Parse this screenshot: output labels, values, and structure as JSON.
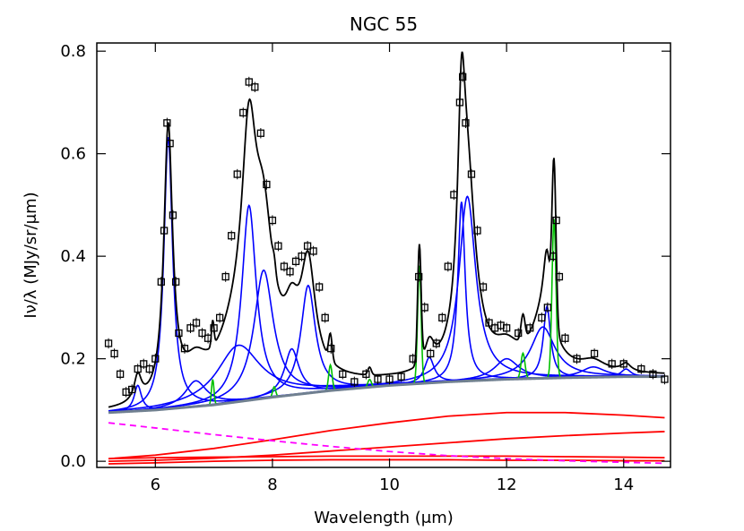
{
  "chart_data": {
    "type": "spectral-decomposition",
    "title": "NGC 55",
    "x_label": "Wavelength (μm)",
    "y_label": "Iν/λ (MJy/sr/μm)",
    "xlim": [
      5.0,
      14.8
    ],
    "ylim": [
      -0.012,
      0.816
    ],
    "xticks": [
      6,
      8,
      10,
      12,
      14
    ],
    "yticks": [
      {
        "value": 0,
        "label": "0.0"
      },
      0.2,
      0.4,
      0.6,
      0.8
    ],
    "observed": {
      "color": "#000000",
      "error": 0.01,
      "x": [
        5.2,
        5.3,
        5.4,
        5.5,
        5.6,
        5.7,
        5.8,
        5.9,
        6.0,
        6.1,
        6.15,
        6.2,
        6.25,
        6.3,
        6.35,
        6.4,
        6.5,
        6.6,
        6.7,
        6.8,
        6.9,
        7.0,
        7.1,
        7.2,
        7.3,
        7.4,
        7.5,
        7.6,
        7.7,
        7.8,
        7.9,
        8.0,
        8.1,
        8.2,
        8.3,
        8.4,
        8.5,
        8.6,
        8.7,
        8.8,
        8.9,
        9.0,
        9.2,
        9.4,
        9.6,
        9.8,
        10.0,
        10.2,
        10.4,
        10.5,
        10.6,
        10.7,
        10.8,
        10.9,
        11.0,
        11.1,
        11.2,
        11.25,
        11.3,
        11.4,
        11.5,
        11.6,
        11.7,
        11.8,
        11.9,
        12.0,
        12.2,
        12.4,
        12.6,
        12.7,
        12.8,
        12.85,
        12.9,
        13.0,
        13.2,
        13.5,
        13.8,
        14.0,
        14.3,
        14.5,
        14.7
      ],
      "values": [
        0.23,
        0.21,
        0.17,
        0.135,
        0.14,
        0.18,
        0.19,
        0.18,
        0.2,
        0.35,
        0.45,
        0.66,
        0.62,
        0.48,
        0.35,
        0.25,
        0.22,
        0.26,
        0.27,
        0.25,
        0.24,
        0.26,
        0.28,
        0.36,
        0.44,
        0.56,
        0.68,
        0.74,
        0.73,
        0.64,
        0.54,
        0.47,
        0.42,
        0.38,
        0.37,
        0.39,
        0.4,
        0.42,
        0.41,
        0.34,
        0.28,
        0.22,
        0.17,
        0.155,
        0.17,
        0.16,
        0.16,
        0.165,
        0.2,
        0.36,
        0.3,
        0.21,
        0.23,
        0.28,
        0.38,
        0.52,
        0.7,
        0.75,
        0.66,
        0.56,
        0.45,
        0.34,
        0.27,
        0.26,
        0.265,
        0.26,
        0.25,
        0.26,
        0.28,
        0.3,
        0.4,
        0.47,
        0.36,
        0.24,
        0.2,
        0.21,
        0.19,
        0.19,
        0.18,
        0.17,
        0.16
      ]
    },
    "continuum_x": [
      5.2,
      6,
      7,
      8,
      9,
      10,
      11,
      12,
      13,
      14,
      14.7
    ],
    "continuum": {
      "color": "#708090",
      "values": [
        0.095,
        0.1,
        0.11,
        0.125,
        0.138,
        0.148,
        0.155,
        0.16,
        0.163,
        0.165,
        0.165
      ]
    },
    "continuum_components": [
      {
        "color": "#ff0000",
        "values": [
          0.005,
          0.012,
          0.025,
          0.042,
          0.06,
          0.075,
          0.088,
          0.095,
          0.095,
          0.09,
          0.085
        ]
      },
      {
        "color": "#ff0000",
        "values": [
          0,
          0.002,
          0.006,
          0.012,
          0.02,
          0.028,
          0.036,
          0.044,
          0.05,
          0.055,
          0.058
        ]
      },
      {
        "color": "#ff0000",
        "values": [
          0.005,
          0.007,
          0.008,
          0.009,
          0.01,
          0.01,
          0.01,
          0.01,
          0.009,
          0.008,
          0.007
        ]
      },
      {
        "color": "#ff0000",
        "values": [
          -0.005,
          -0.003,
          0,
          0.002,
          0.003,
          0.003,
          0.003,
          0.002,
          0.002,
          0.001,
          0.001
        ]
      }
    ],
    "extinction": {
      "color": "#ff00ff",
      "values": [
        0.075,
        0.065,
        0.052,
        0.04,
        0.029,
        0.019,
        0.011,
        0.005,
        0.001,
        -0.002,
        -0.004
      ]
    },
    "model_color": "#000000",
    "feature_color": "#0000ff",
    "features": [
      {
        "center": 5.7,
        "fwhm": 0.15,
        "peak": 0.05
      },
      {
        "center": 6.22,
        "fwhm": 0.18,
        "peak": 0.53
      },
      {
        "center": 6.69,
        "fwhm": 0.45,
        "peak": 0.05
      },
      {
        "center": 7.42,
        "fwhm": 0.9,
        "peak": 0.11
      },
      {
        "center": 7.6,
        "fwhm": 0.3,
        "peak": 0.38
      },
      {
        "center": 7.85,
        "fwhm": 0.4,
        "peak": 0.25
      },
      {
        "center": 8.33,
        "fwhm": 0.3,
        "peak": 0.09
      },
      {
        "center": 8.61,
        "fwhm": 0.3,
        "peak": 0.21
      },
      {
        "center": 10.68,
        "fwhm": 0.2,
        "peak": 0.05
      },
      {
        "center": 11.23,
        "fwhm": 0.15,
        "peak": 0.35
      },
      {
        "center": 11.33,
        "fwhm": 0.35,
        "peak": 0.36
      },
      {
        "center": 12.0,
        "fwhm": 0.5,
        "peak": 0.04
      },
      {
        "center": 12.62,
        "fwhm": 0.5,
        "peak": 0.1
      },
      {
        "center": 12.69,
        "fwhm": 0.15,
        "peak": 0.14
      },
      {
        "center": 13.48,
        "fwhm": 0.5,
        "peak": 0.02
      },
      {
        "center": 14.04,
        "fwhm": 0.2,
        "peak": 0.015
      }
    ],
    "line_color": "#00c000",
    "lines": [
      {
        "center": 6.98,
        "fwhm": 0.05,
        "peak": 0.05
      },
      {
        "center": 8.03,
        "fwhm": 0.06,
        "peak": 0.02
      },
      {
        "center": 8.99,
        "fwhm": 0.07,
        "peak": 0.05
      },
      {
        "center": 9.66,
        "fwhm": 0.07,
        "peak": 0.015
      },
      {
        "center": 10.51,
        "fwhm": 0.07,
        "peak": 0.23
      },
      {
        "center": 12.28,
        "fwhm": 0.08,
        "peak": 0.05
      },
      {
        "center": 12.81,
        "fwhm": 0.08,
        "peak": 0.31
      }
    ]
  }
}
